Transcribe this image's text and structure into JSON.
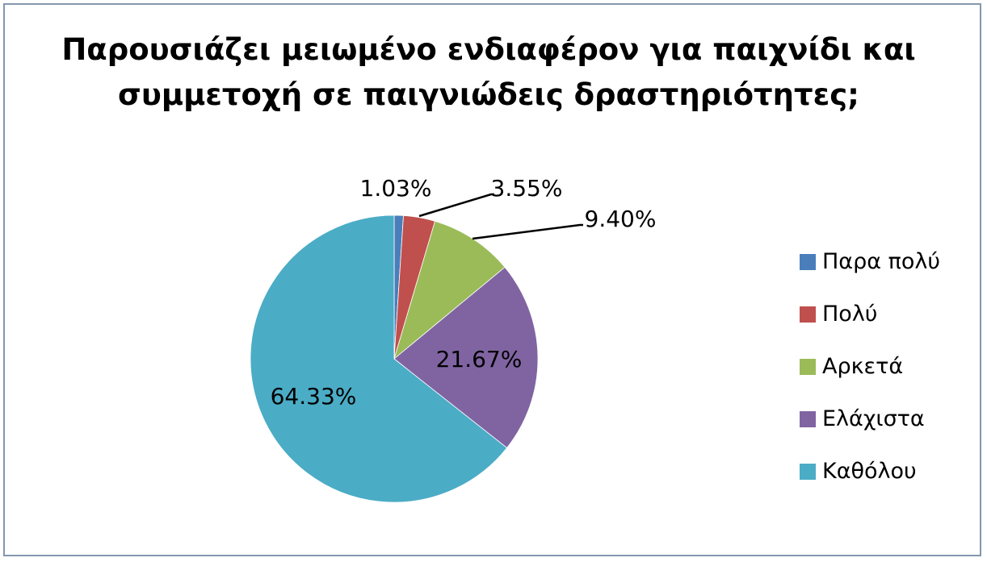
{
  "chart_data": {
    "type": "pie",
    "title": "Παρουσιάζει μειωμένο ενδιαφέρον για παιχνίδι και\nσυμμετοχή σε παιγνιώδεις δραστηριότητες;",
    "categories": [
      "Παρα πολύ",
      "Πολύ",
      "Αρκετά",
      "Ελάχιστα",
      "Καθόλου"
    ],
    "values": [
      1.03,
      3.55,
      9.4,
      21.67,
      64.33
    ],
    "data_labels": [
      "1.03%",
      "3.55%",
      "9.40%",
      "21.67%",
      "64.33%"
    ],
    "colors": [
      "#4a7ebb",
      "#c0504d",
      "#9bbb59",
      "#8064a2",
      "#4bacc6"
    ],
    "legend_position": "right"
  }
}
